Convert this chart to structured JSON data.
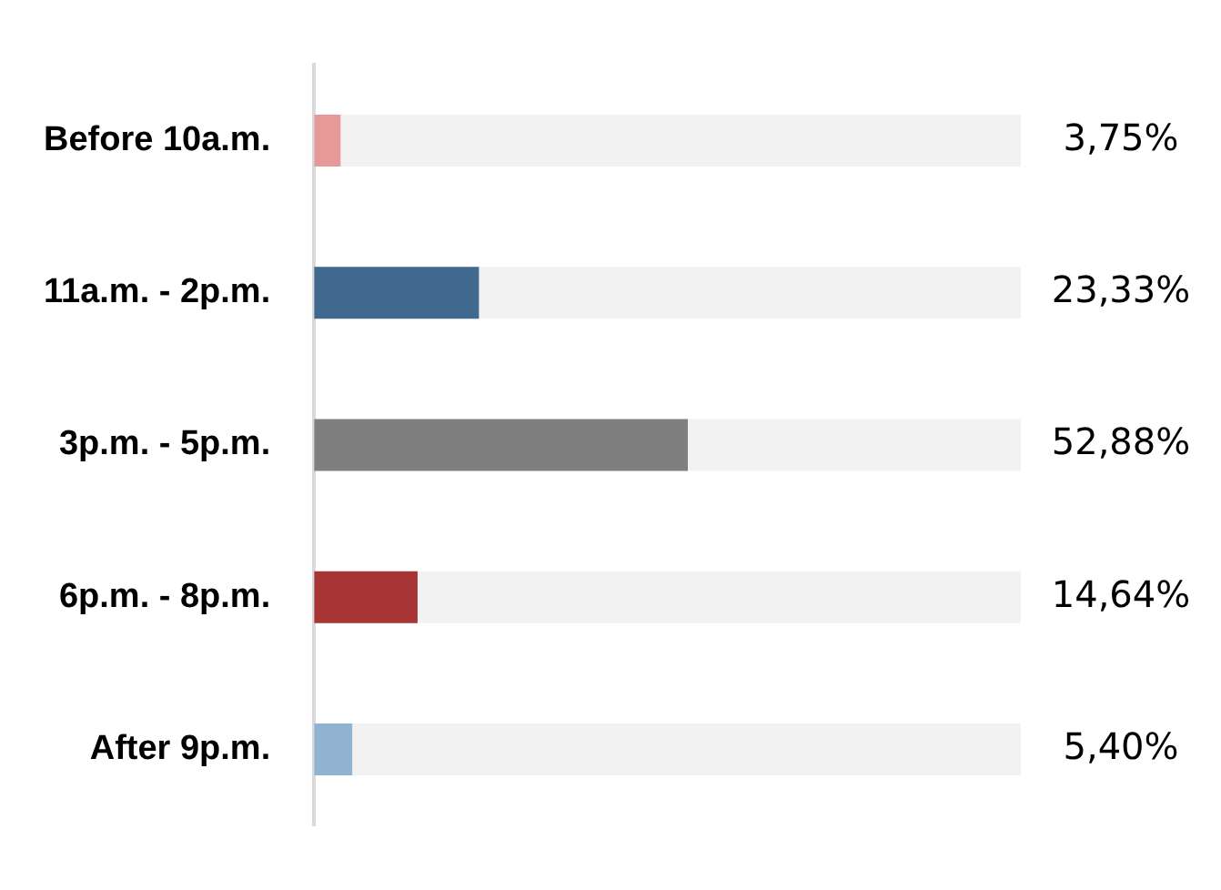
{
  "chart_data": {
    "type": "bar",
    "orientation": "horizontal",
    "categories": [
      "Before 10a.m.",
      "11a.m. - 2p.m.",
      "3p.m. - 5p.m.",
      "6p.m. - 8p.m.",
      "After 9p.m."
    ],
    "series": [
      {
        "values": [
          3.75,
          23.33,
          52.88,
          14.64,
          5.4
        ],
        "colors": [
          "#e59a98",
          "#41698f",
          "#7f7f7f",
          "#a83535",
          "#8fb3d1"
        ],
        "value_labels": [
          "3,75%",
          "23,33%",
          "52,88%",
          "14,64%",
          "5,40%"
        ]
      },
      {
        "values": [
          96.25,
          76.67,
          47.12,
          85.36,
          94.6
        ],
        "color": "#f2f2f2"
      }
    ],
    "stacked": true,
    "xlim": [
      0,
      100
    ],
    "tick_labels": "y",
    "grid": false,
    "legend": false
  }
}
